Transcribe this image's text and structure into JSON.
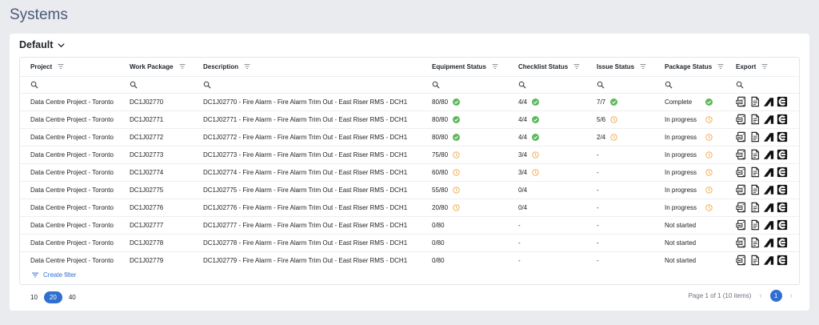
{
  "page": {
    "title": "Systems"
  },
  "view": {
    "label": "Default"
  },
  "table": {
    "columns": [
      {
        "key": "project",
        "label": "Project"
      },
      {
        "key": "work_package",
        "label": "Work Package"
      },
      {
        "key": "description",
        "label": "Description"
      },
      {
        "key": "equipment",
        "label": "Equipment Status"
      },
      {
        "key": "checklist",
        "label": "Checklist Status"
      },
      {
        "key": "issue",
        "label": "Issue Status"
      },
      {
        "key": "package",
        "label": "Package Status"
      },
      {
        "key": "export",
        "label": "Export"
      }
    ],
    "rows": [
      {
        "project": "Data Centre Project - Toronto",
        "work_package": "DC1J02770",
        "description": "DC1J02770 - Fire Alarm - Fire Alarm Trim Out - East Riser RMS - DCH1",
        "equipment": "80/80",
        "equipment_icon": "check-circle-icon",
        "checklist": "4/4",
        "checklist_icon": "check-circle-icon",
        "issue": "7/7",
        "issue_icon": "check-circle-icon",
        "package": "Complete",
        "package_icon": "check-circle-icon"
      },
      {
        "project": "Data Centre Project - Toronto",
        "work_package": "DC1J02771",
        "description": "DC1J02771 - Fire Alarm - Fire Alarm Trim Out - East Riser RMS - DCH1",
        "equipment": "80/80",
        "equipment_icon": "check-circle-icon",
        "checklist": "4/4",
        "checklist_icon": "check-circle-icon",
        "issue": "5/6",
        "issue_icon": "clock-icon",
        "package": "In progress",
        "package_icon": "clock-icon"
      },
      {
        "project": "Data Centre Project - Toronto",
        "work_package": "DC1J02772",
        "description": "DC1J02772 - Fire Alarm - Fire Alarm Trim Out - East Riser RMS - DCH1",
        "equipment": "80/80",
        "equipment_icon": "check-circle-icon",
        "checklist": "4/4",
        "checklist_icon": "check-circle-icon",
        "issue": "2/4",
        "issue_icon": "clock-icon",
        "package": "In progress",
        "package_icon": "clock-icon"
      },
      {
        "project": "Data Centre Project - Toronto",
        "work_package": "DC1J02773",
        "description": "DC1J02773 - Fire Alarm - Fire Alarm Trim Out - East Riser RMS - DCH1",
        "equipment": "75/80",
        "equipment_icon": "clock-icon",
        "checklist": "3/4",
        "checklist_icon": "clock-icon",
        "issue": "-",
        "issue_icon": "",
        "package": "In progress",
        "package_icon": "clock-icon"
      },
      {
        "project": "Data Centre Project - Toronto",
        "work_package": "DC1J02774",
        "description": "DC1J02774 - Fire Alarm - Fire Alarm Trim Out - East Riser RMS - DCH1",
        "equipment": "60/80",
        "equipment_icon": "clock-icon",
        "checklist": "3/4",
        "checklist_icon": "clock-icon",
        "issue": "-",
        "issue_icon": "",
        "package": "In progress",
        "package_icon": "clock-icon"
      },
      {
        "project": "Data Centre Project - Toronto",
        "work_package": "DC1J02775",
        "description": "DC1J02775 - Fire Alarm - Fire Alarm Trim Out - East Riser RMS - DCH1",
        "equipment": "55/80",
        "equipment_icon": "clock-icon",
        "checklist": "0/4",
        "checklist_icon": "",
        "issue": "-",
        "issue_icon": "",
        "package": "In progress",
        "package_icon": "clock-icon"
      },
      {
        "project": "Data Centre Project - Toronto",
        "work_package": "DC1J02776",
        "description": "DC1J02776 - Fire Alarm - Fire Alarm Trim Out - East Riser RMS - DCH1",
        "equipment": "20/80",
        "equipment_icon": "clock-icon",
        "checklist": "0/4",
        "checklist_icon": "",
        "issue": "-",
        "issue_icon": "",
        "package": "In progress",
        "package_icon": "clock-icon"
      },
      {
        "project": "Data Centre Project - Toronto",
        "work_package": "DC1J02777",
        "description": "DC1J02777 - Fire Alarm - Fire Alarm Trim Out - East Riser RMS - DCH1",
        "equipment": "0/80",
        "equipment_icon": "",
        "checklist": "-",
        "checklist_icon": "",
        "issue": "-",
        "issue_icon": "",
        "package": "Not started",
        "package_icon": ""
      },
      {
        "project": "Data Centre Project - Toronto",
        "work_package": "DC1J02778",
        "description": "DC1J02778 - Fire Alarm - Fire Alarm Trim Out - East Riser RMS - DCH1",
        "equipment": "0/80",
        "equipment_icon": "",
        "checklist": "-",
        "checklist_icon": "",
        "issue": "-",
        "issue_icon": "",
        "package": "Not started",
        "package_icon": ""
      },
      {
        "project": "Data Centre Project - Toronto",
        "work_package": "DC1J02779",
        "description": "DC1J02779 - Fire Alarm - Fire Alarm Trim Out - East Riser RMS - DCH1",
        "equipment": "0/80",
        "equipment_icon": "",
        "checklist": "-",
        "checklist_icon": "",
        "issue": "-",
        "issue_icon": "",
        "package": "Not started",
        "package_icon": ""
      }
    ],
    "export_icons": [
      "pdf-document-icon",
      "pdf-file-icon",
      "autodesk-icon",
      "procore-icon"
    ]
  },
  "filter": {
    "create_label": "Create filter"
  },
  "page_size": {
    "options": [
      "10",
      "20",
      "40"
    ],
    "selected": "20"
  },
  "pagination": {
    "summary": "Page 1 of 1 (10 items)",
    "current_page": "1"
  },
  "colors": {
    "accent": "#2e6fd0",
    "success": "#5cb85c",
    "pending": "#f0a94a"
  }
}
